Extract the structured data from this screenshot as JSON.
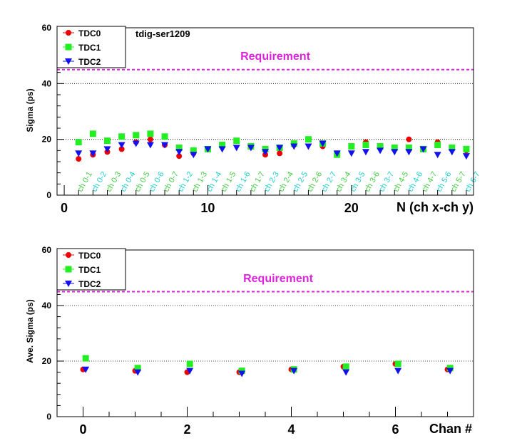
{
  "chart_data": [
    {
      "type": "scatter",
      "annotation": "tdig-ser1209",
      "requirement_label": "Requirement",
      "requirement_value": 45,
      "ylabel": "Sigma (ps)",
      "xlabel": "N (ch x-ch y)",
      "xlim": [
        -0.5,
        28.5
      ],
      "ylim": [
        0,
        60
      ],
      "x_ticks": [
        0,
        10,
        20
      ],
      "y_ticks": [
        0,
        20,
        40,
        60
      ],
      "grid": "horizontal dotted",
      "legend": "top-left",
      "categories": [
        "ch 0-1",
        "ch 0-2",
        "ch 0-3",
        "ch 0-4",
        "ch 0-5",
        "ch 0-6",
        "ch 0-7",
        "ch 1-2",
        "ch 1-3",
        "ch 1-4",
        "ch 1-5",
        "ch 1-6",
        "ch 1-7",
        "ch 2-3",
        "ch 2-4",
        "ch 2-5",
        "ch 2-6",
        "ch 2-7",
        "ch 3-4",
        "ch 3-5",
        "ch 3-6",
        "ch 3-7",
        "ch 4-5",
        "ch 4-6",
        "ch 4-7",
        "ch 5-6",
        "ch 5-7",
        "ch 6-7"
      ],
      "category_colors": [
        "#44cc44",
        "#22cccc"
      ],
      "x": [
        1,
        2,
        3,
        4,
        5,
        6,
        7,
        8,
        9,
        10,
        11,
        12,
        13,
        14,
        15,
        16,
        17,
        18,
        19,
        20,
        21,
        22,
        23,
        24,
        25,
        26,
        27,
        28
      ],
      "series": [
        {
          "name": "TDC0",
          "marker": "circle",
          "color": "#ee0000",
          "values": [
            13,
            14.5,
            15.5,
            16.5,
            19,
            20,
            18,
            14,
            15,
            16.5,
            18,
            19.5,
            17.5,
            14.5,
            15,
            18,
            20,
            17.5,
            14.5,
            17.5,
            19,
            17,
            16.5,
            20,
            16.5,
            19,
            16.5,
            16
          ]
        },
        {
          "name": "TDC1",
          "marker": "square",
          "color": "#22ee22",
          "values": [
            19,
            22,
            19.5,
            21,
            21.5,
            22,
            21,
            17,
            16,
            16.5,
            18,
            19.5,
            17.5,
            16.5,
            17,
            18.5,
            20,
            18.5,
            14.5,
            17.5,
            18,
            17.5,
            17,
            17,
            16.5,
            18,
            17,
            16.5
          ]
        },
        {
          "name": "TDC2",
          "marker": "triangle-down",
          "color": "#1111ee",
          "values": [
            15,
            15,
            16.5,
            18,
            18.5,
            18,
            18,
            15.5,
            14.5,
            16.5,
            16.5,
            17,
            17,
            15.5,
            17,
            17.5,
            17.5,
            18.5,
            15,
            15,
            15.5,
            16,
            15.5,
            15.5,
            16.5,
            14.5,
            15.5,
            14
          ]
        }
      ]
    },
    {
      "type": "scatter",
      "requirement_label": "Requirement",
      "requirement_value": 45,
      "ylabel": "Ave. Sigma (ps)",
      "xlabel": "Chan #",
      "xlim": [
        -0.5,
        7.5
      ],
      "ylim": [
        0,
        60
      ],
      "x_ticks": [
        0,
        2,
        4,
        6
      ],
      "y_ticks": [
        0,
        20,
        40,
        60
      ],
      "grid": "horizontal dotted",
      "legend": "top-left",
      "series": [
        {
          "name": "TDC0",
          "marker": "circle",
          "color": "#ee0000",
          "x": [
            0,
            1,
            2,
            3,
            4,
            5,
            6,
            7
          ],
          "values": [
            17,
            16.5,
            16,
            16,
            17,
            18,
            19,
            17
          ]
        },
        {
          "name": "TDC1",
          "marker": "square",
          "color": "#22ee22",
          "x": [
            0,
            1,
            2,
            3,
            4,
            5,
            6,
            7
          ],
          "values": [
            21,
            17.5,
            19,
            16.5,
            17,
            18,
            19,
            17.5
          ]
        },
        {
          "name": "TDC2",
          "marker": "triangle-down",
          "color": "#1111ee",
          "x": [
            0,
            1,
            2,
            3,
            4,
            5,
            6,
            7
          ],
          "values": [
            17,
            16,
            16.5,
            15.5,
            16.5,
            16,
            16.5,
            16.5
          ]
        }
      ]
    }
  ]
}
